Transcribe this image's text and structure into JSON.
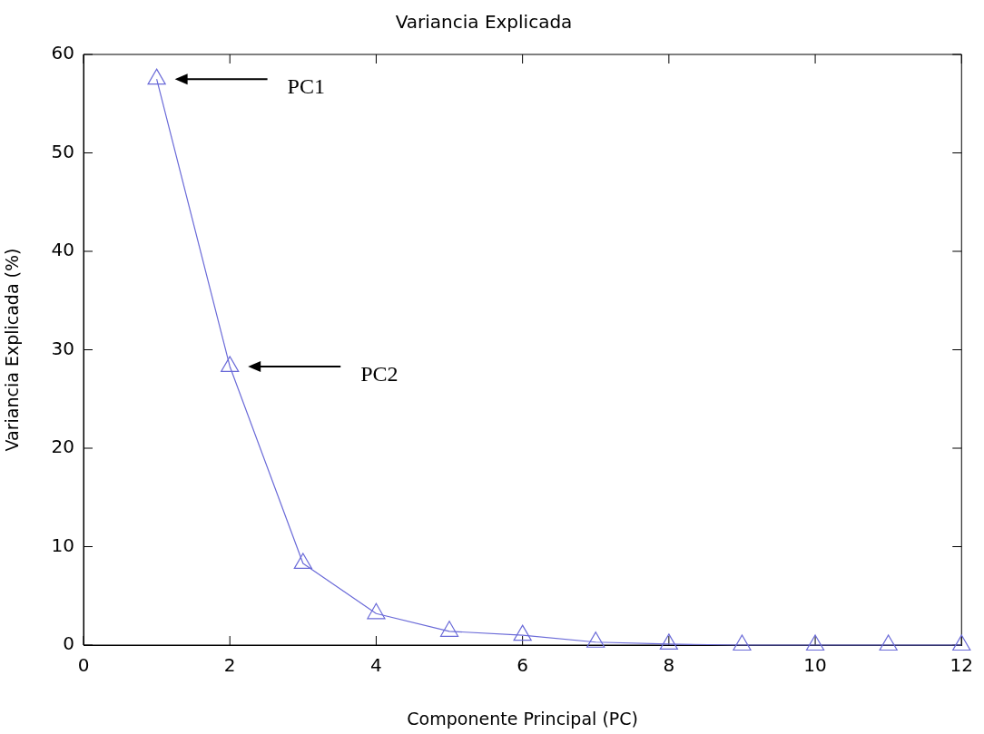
{
  "chart_data": {
    "type": "line",
    "title": "Variancia Explicada",
    "xlabel": "Componente Principal (PC)",
    "ylabel": "Variancia Explicada (%)",
    "x": [
      1,
      2,
      3,
      4,
      5,
      6,
      7,
      8,
      9,
      10,
      11,
      12
    ],
    "series": [
      {
        "color": "#6a6ad8",
        "values": [
          57.5,
          28.3,
          8.3,
          3.2,
          1.4,
          1.0,
          0.3,
          0.1,
          0,
          0,
          0,
          0
        ]
      }
    ],
    "xlim": [
      0,
      12
    ],
    "xticks": [
      0,
      2,
      4,
      6,
      8,
      10,
      12
    ],
    "ylim": [
      0,
      60
    ],
    "yticks": [
      0,
      10,
      20,
      30,
      40,
      50,
      60
    ],
    "grid": false,
    "legend": false,
    "marker": "triangle",
    "line_style": "solid",
    "annotations": [
      "PC1",
      "PC2"
    ]
  }
}
